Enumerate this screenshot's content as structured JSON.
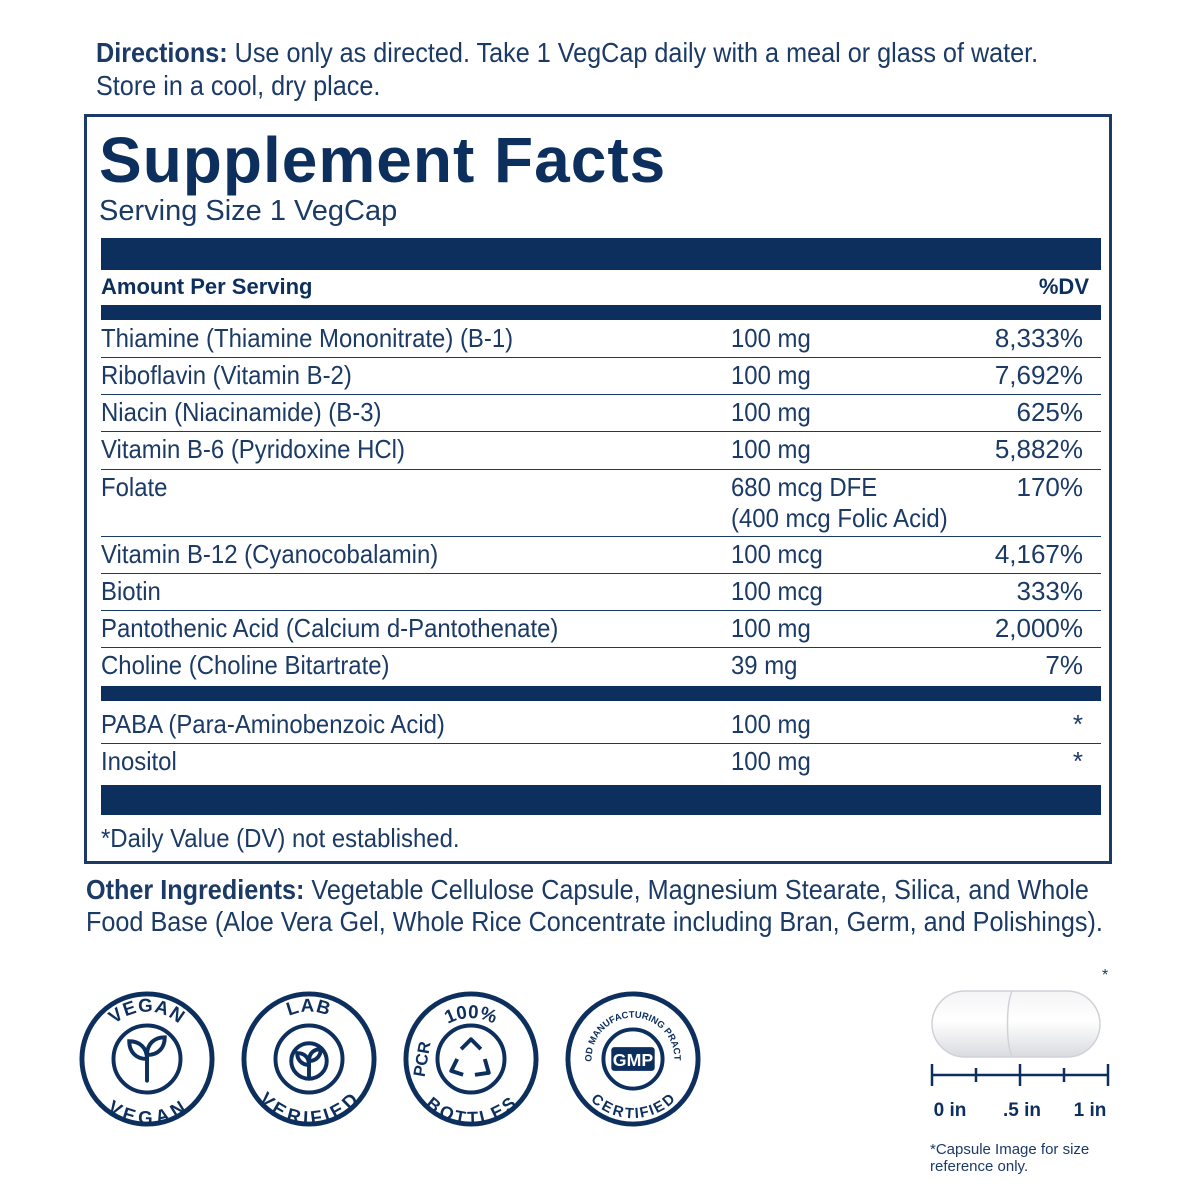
{
  "directions": {
    "label": "Directions:",
    "text": " Use only as directed. Take 1 VegCap daily with a meal or glass of water. Store in a cool, dry place."
  },
  "facts": {
    "title": "Supplement Facts",
    "serving_size": "Serving Size 1 VegCap",
    "amount_header": "Amount Per Serving",
    "dv_header": "%DV",
    "rows": [
      {
        "name": "Thiamine (Thiamine Mononitrate) (B-1)",
        "amount": "100 mg",
        "amount2": "",
        "dv": "8,333%"
      },
      {
        "name": "Riboflavin (Vitamin B-2)",
        "amount": "100 mg",
        "amount2": "",
        "dv": "7,692%"
      },
      {
        "name": "Niacin (Niacinamide) (B-3)",
        "amount": "100 mg",
        "amount2": "",
        "dv": "625%"
      },
      {
        "name": "Vitamin B-6 (Pyridoxine HCl)",
        "amount": "100 mg",
        "amount2": "",
        "dv": "5,882%"
      },
      {
        "name": "Folate",
        "amount": "680 mcg DFE",
        "amount2": "(400 mcg Folic Acid)",
        "dv": "170%"
      },
      {
        "name": "Vitamin B-12 (Cyanocobalamin)",
        "amount": "100 mcg",
        "amount2": "",
        "dv": "4,167%"
      },
      {
        "name": "Biotin",
        "amount": "100 mcg",
        "amount2": "",
        "dv": "333%"
      },
      {
        "name": "Pantothenic Acid (Calcium d-Pantothenate)",
        "amount": "100 mg",
        "amount2": "",
        "dv": "2,000%"
      },
      {
        "name": "Choline (Choline Bitartrate)",
        "amount": "39 mg",
        "amount2": "",
        "dv": "7%"
      }
    ],
    "rows2": [
      {
        "name": "PABA (Para-Aminobenzoic Acid)",
        "amount": "100 mg",
        "dv": "*"
      },
      {
        "name": "Inositol",
        "amount": "100 mg",
        "dv": "*"
      }
    ],
    "footnote": "*Daily Value (DV) not established."
  },
  "other_ingredients": {
    "label": "Other Ingredients:",
    "text": " Vegetable Cellulose Capsule, Magnesium Stearate, Silica, and Whole Food Base (Aloe Vera Gel, Whole Rice Concentrate including Bran, Germ, and Polishings)."
  },
  "badges": {
    "vegan": {
      "top": "VEGAN",
      "bottom": "VEGAN"
    },
    "lab": {
      "top": "LAB",
      "bottom": "VERIFIED"
    },
    "pcr": {
      "top": "100%",
      "left": "PCR",
      "bottom": "BOTTLES"
    },
    "gmp": {
      "top": "GOOD MANUFACTURING PRACTICE",
      "center": "GMP",
      "bottom": "CERTIFIED"
    }
  },
  "capsule": {
    "asterisk": "*",
    "scale_labels": [
      "0 in",
      ".5 in",
      "1 in"
    ],
    "caption": "*Capsule Image for size reference only."
  },
  "colors": {
    "navy": "#0d2f5e",
    "text": "#1b3a66"
  }
}
